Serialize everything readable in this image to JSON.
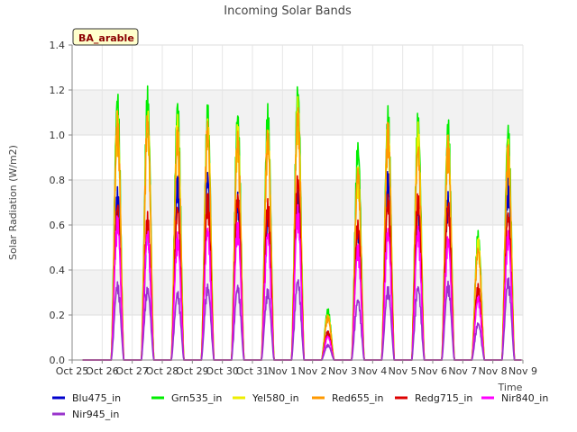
{
  "chart_data": {
    "type": "line",
    "title": "Incoming Solar Bands",
    "ylabel": "Solar Radiation (W/m2)",
    "xlabel": "Time",
    "badge": "BA_arable",
    "ylim": [
      0,
      1.4
    ],
    "xlim": [
      "2023-10-25",
      "2023-11-09"
    ],
    "yticks": [
      "0.0",
      "0.2",
      "0.4",
      "0.6",
      "0.8",
      "1.0",
      "1.2",
      "1.4"
    ],
    "xticks": [
      "Oct 25",
      "Oct 26",
      "Oct 27",
      "Oct 28",
      "Oct 29",
      "Oct 30",
      "Oct 31",
      "Nov 1",
      "Nov 2",
      "Nov 3",
      "Nov 4",
      "Nov 5",
      "Nov 6",
      "Nov 7",
      "Nov 8",
      "Nov 9"
    ],
    "grid": true,
    "legend_position": "bottom",
    "days": [
      "2023-10-26",
      "2023-10-27",
      "2023-10-28",
      "2023-10-29",
      "2023-10-30",
      "2023-10-31",
      "2023-11-01",
      "2023-11-02",
      "2023-11-03",
      "2023-11-04",
      "2023-11-05",
      "2023-11-06",
      "2023-11-07",
      "2023-11-08"
    ],
    "series": [
      {
        "name": "Blu475_in",
        "color": "#0000cc",
        "daily_peak": [
          0.77,
          0.6,
          0.83,
          0.86,
          0.75,
          0.66,
          0.77,
          0.13,
          0.6,
          0.85,
          0.7,
          0.75,
          0.33,
          0.82
        ]
      },
      {
        "name": "Grn535_in",
        "color": "#00ee00",
        "daily_peak": [
          1.22,
          1.22,
          1.19,
          1.15,
          1.14,
          1.14,
          1.26,
          0.23,
          0.99,
          1.14,
          1.12,
          1.09,
          0.58,
          1.07
        ]
      },
      {
        "name": "Yel580_in",
        "color": "#eeee00",
        "daily_peak": [
          1.13,
          1.13,
          1.1,
          1.1,
          1.06,
          1.06,
          1.17,
          0.21,
          0.87,
          1.1,
          1.06,
          1.03,
          0.55,
          1.0
        ]
      },
      {
        "name": "Red655_in",
        "color": "#ff9900",
        "daily_peak": [
          1.11,
          1.12,
          1.05,
          1.08,
          1.03,
          1.04,
          1.15,
          0.2,
          0.88,
          1.07,
          0.99,
          1.0,
          0.52,
          0.97
        ]
      },
      {
        "name": "Redg715_in",
        "color": "#dd0000",
        "daily_peak": [
          0.72,
          0.66,
          0.71,
          0.75,
          0.76,
          0.72,
          0.84,
          0.13,
          0.63,
          0.75,
          0.75,
          0.72,
          0.34,
          0.68
        ]
      },
      {
        "name": "Nir840_in",
        "color": "#ff00ff",
        "daily_peak": [
          0.65,
          0.59,
          0.57,
          0.61,
          0.62,
          0.59,
          0.69,
          0.11,
          0.52,
          0.6,
          0.6,
          0.56,
          0.29,
          0.58
        ]
      },
      {
        "name": "Nir945_in",
        "color": "#9933cc",
        "daily_peak": [
          0.35,
          0.33,
          0.31,
          0.34,
          0.34,
          0.32,
          0.37,
          0.07,
          0.28,
          0.33,
          0.34,
          0.35,
          0.17,
          0.37
        ]
      }
    ]
  }
}
